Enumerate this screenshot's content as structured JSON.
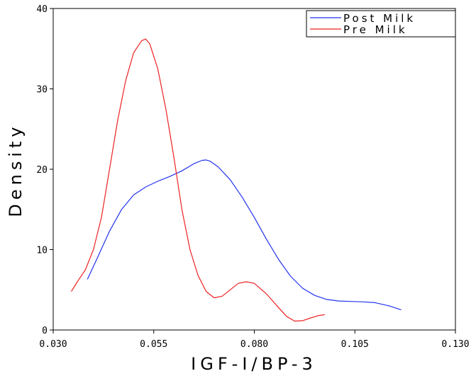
{
  "chart_data": {
    "type": "line",
    "title": "",
    "xlabel": "IGF-I/BP-3",
    "ylabel": "Density",
    "xlim": [
      0.03,
      0.13
    ],
    "ylim": [
      0,
      40
    ],
    "x_ticks": [
      "0.030",
      "0.055",
      "0.080",
      "0.105",
      "0.130"
    ],
    "y_ticks": [
      "0",
      "10",
      "20",
      "30",
      "40"
    ],
    "legend": {
      "position": "top-right",
      "entries": [
        "Post Milk",
        "Pre Milk"
      ]
    },
    "grid": false,
    "series": [
      {
        "name": "Post Milk",
        "color": "#2233ee",
        "points": [
          [
            0.0385,
            6.3
          ],
          [
            0.041,
            9.0
          ],
          [
            0.044,
            12.3
          ],
          [
            0.047,
            15.0
          ],
          [
            0.05,
            16.8
          ],
          [
            0.053,
            17.8
          ],
          [
            0.056,
            18.5
          ],
          [
            0.059,
            19.1
          ],
          [
            0.062,
            19.8
          ],
          [
            0.065,
            20.7
          ],
          [
            0.067,
            21.1
          ],
          [
            0.068,
            21.15
          ],
          [
            0.069,
            21.0
          ],
          [
            0.071,
            20.3
          ],
          [
            0.074,
            18.7
          ],
          [
            0.077,
            16.5
          ],
          [
            0.08,
            14.0
          ],
          [
            0.083,
            11.3
          ],
          [
            0.086,
            8.8
          ],
          [
            0.089,
            6.7
          ],
          [
            0.092,
            5.2
          ],
          [
            0.095,
            4.3
          ],
          [
            0.098,
            3.8
          ],
          [
            0.101,
            3.6
          ],
          [
            0.104,
            3.55
          ],
          [
            0.107,
            3.5
          ],
          [
            0.11,
            3.4
          ],
          [
            0.1135,
            3.0
          ],
          [
            0.1165,
            2.5
          ]
        ]
      },
      {
        "name": "Pre Milk",
        "color": "#ee2222",
        "points": [
          [
            0.0345,
            4.8
          ],
          [
            0.036,
            6.0
          ],
          [
            0.038,
            7.5
          ],
          [
            0.04,
            10.0
          ],
          [
            0.042,
            14.0
          ],
          [
            0.044,
            20.0
          ],
          [
            0.046,
            26.0
          ],
          [
            0.048,
            31.0
          ],
          [
            0.05,
            34.5
          ],
          [
            0.052,
            36.0
          ],
          [
            0.053,
            36.2
          ],
          [
            0.054,
            35.6
          ],
          [
            0.056,
            32.5
          ],
          [
            0.058,
            27.5
          ],
          [
            0.06,
            21.5
          ],
          [
            0.062,
            15.0
          ],
          [
            0.064,
            10.0
          ],
          [
            0.066,
            6.8
          ],
          [
            0.068,
            4.8
          ],
          [
            0.07,
            4.0
          ],
          [
            0.072,
            4.2
          ],
          [
            0.074,
            5.0
          ],
          [
            0.076,
            5.8
          ],
          [
            0.078,
            6.0
          ],
          [
            0.08,
            5.8
          ],
          [
            0.083,
            4.5
          ],
          [
            0.086,
            2.8
          ],
          [
            0.088,
            1.7
          ],
          [
            0.09,
            1.1
          ],
          [
            0.092,
            1.15
          ],
          [
            0.094,
            1.5
          ],
          [
            0.096,
            1.8
          ],
          [
            0.0975,
            1.9
          ]
        ]
      }
    ]
  }
}
